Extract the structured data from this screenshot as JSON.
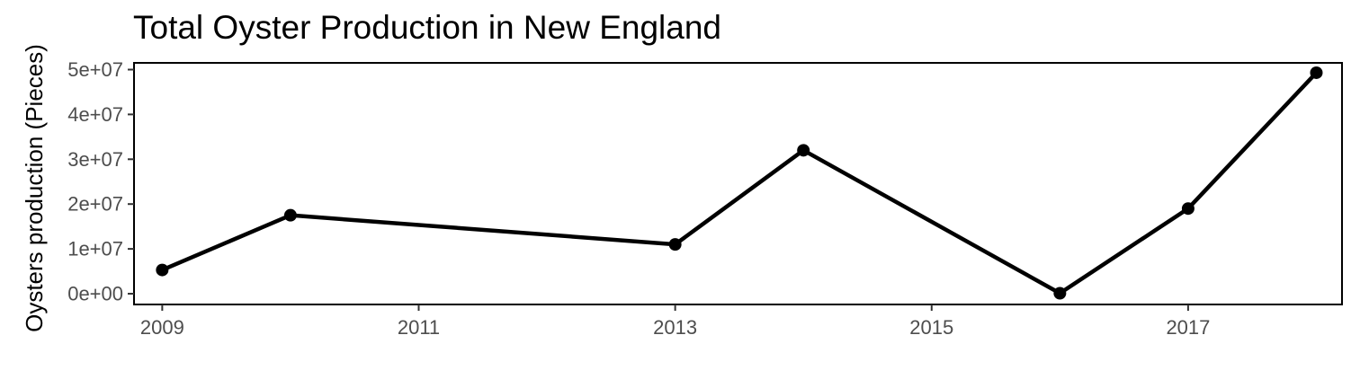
{
  "chart_data": {
    "type": "line",
    "title": "Total Oyster Production in New England",
    "xlabel": "",
    "ylabel": "Oysters production (Pieces)",
    "xlim": [
      2008.78,
      2018.2
    ],
    "ylim": [
      -2400000,
      51500000
    ],
    "x_ticks": [
      2009,
      2011,
      2013,
      2015,
      2017
    ],
    "x_tick_labels": [
      "2009",
      "2011",
      "2013",
      "2015",
      "2017"
    ],
    "y_ticks": [
      0,
      10000000,
      20000000,
      30000000,
      40000000,
      50000000
    ],
    "y_tick_labels": [
      "0e+00",
      "1e+07",
      "2e+07",
      "3e+07",
      "4e+07",
      "5e+07"
    ],
    "series": [
      {
        "x": [
          2009,
          2010,
          2013,
          2014,
          2016,
          2017,
          2018
        ],
        "values": [
          5300000,
          17500000,
          11000000,
          32000000,
          100000,
          19000000,
          49300000
        ],
        "color": "#000000"
      }
    ],
    "grid": false,
    "legend": "none"
  }
}
